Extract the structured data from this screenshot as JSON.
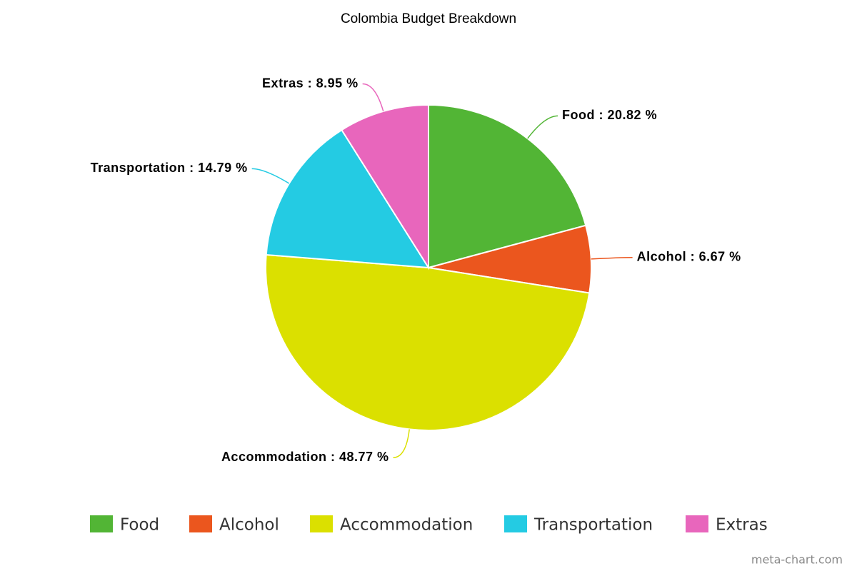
{
  "chart_data": {
    "type": "pie",
    "title": "Colombia Budget Breakdown",
    "categories": [
      "Food",
      "Alcohol",
      "Accommodation",
      "Transportation",
      "Extras"
    ],
    "values": [
      20.82,
      6.67,
      48.77,
      14.79,
      8.95
    ],
    "value_labels": [
      "Food : 20.82 %",
      "Alcohol : 6.67 %",
      "Accommodation : 48.77 %",
      "Transportation : 14.79 %",
      "Extras : 8.95 %"
    ],
    "colors": [
      "#52b535",
      "#eb561e",
      "#dbe000",
      "#24cbe3",
      "#e866bc"
    ],
    "legend": "bottom",
    "credit": "meta-chart.com"
  }
}
